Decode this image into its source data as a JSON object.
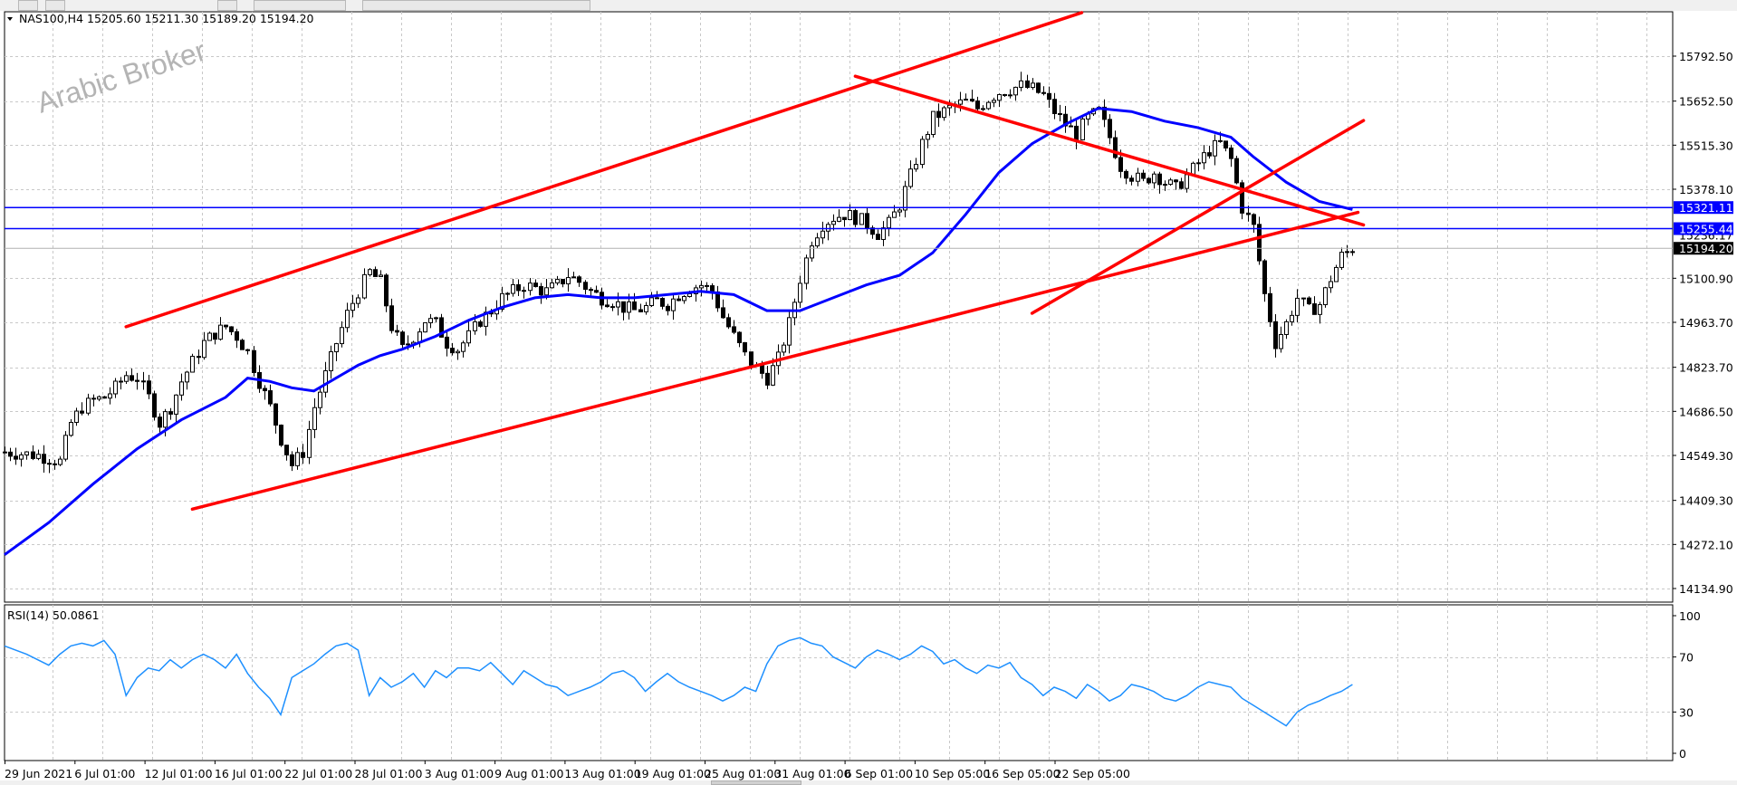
{
  "window": {
    "symbol_info": "NAS100,H4",
    "ohlc": "15205.60 15211.30 15189.20 15194.20",
    "watermark": "Arabic Broker",
    "rsi_label": "RSI(14) 50.0861"
  },
  "colors": {
    "background": "#ffffff",
    "grid": "#c8c8c8",
    "candles": "#000000",
    "ma": "#0000ff",
    "trendlines": "#ff0000",
    "hlines": "#0000ff",
    "rsi": "#1e90ff",
    "current_price_tag": "#000000",
    "level_tag": "#0000ff"
  },
  "icons": [
    "dropdown-arrow-icon"
  ],
  "chart_data": [
    {
      "type": "candlestick",
      "symbol": "NAS100",
      "timeframe": "H4",
      "ylim": [
        14072,
        15915
      ],
      "price_ticks": [
        "15792.50",
        "15652.50",
        "15515.30",
        "15378.10",
        "15100.90",
        "14963.70",
        "14823.70",
        "14686.50",
        "14549.30",
        "14409.30",
        "14272.10",
        "14134.90"
      ],
      "time_labels": [
        "29 Jun 2021",
        "6 Jul 01:00",
        "12 Jul 01:00",
        "16 Jul 01:00",
        "22 Jul 01:00",
        "28 Jul 01:00",
        "3 Aug 01:00",
        "9 Aug 01:00",
        "13 Aug 01:00",
        "19 Aug 01:00",
        "25 Aug 01:00",
        "31 Aug 01:00",
        "6 Sep 01:00",
        "10 Sep 05:00",
        "16 Sep 05:00",
        "22 Sep 05:00"
      ],
      "levels": [
        {
          "label": "15321.11",
          "value": 15321.11
        },
        {
          "label": "15255.44",
          "value": 15255.44
        },
        {
          "label": "15194.20",
          "value": 15194.2,
          "kind": "current"
        }
      ],
      "hidden_level_label": "15236.17",
      "close_path": [
        [
          0,
          14560
        ],
        [
          6,
          14550
        ],
        [
          10,
          14530
        ],
        [
          12,
          14650
        ],
        [
          14,
          14700
        ],
        [
          16,
          14720
        ],
        [
          18,
          14730
        ],
        [
          20,
          14760
        ],
        [
          22,
          14800
        ],
        [
          24,
          14790
        ],
        [
          26,
          14730
        ],
        [
          28,
          14650
        ],
        [
          30,
          14700
        ],
        [
          32,
          14780
        ],
        [
          34,
          14840
        ],
        [
          36,
          14900
        ],
        [
          38,
          14930
        ],
        [
          40,
          14950
        ],
        [
          42,
          14920
        ],
        [
          44,
          14870
        ],
        [
          46,
          14780
        ],
        [
          48,
          14700
        ],
        [
          50,
          14600
        ],
        [
          52,
          14520
        ],
        [
          54,
          14560
        ],
        [
          56,
          14700
        ],
        [
          58,
          14800
        ],
        [
          60,
          14900
        ],
        [
          62,
          14990
        ],
        [
          64,
          15060
        ],
        [
          66,
          15120
        ],
        [
          68,
          15090
        ],
        [
          70,
          14950
        ],
        [
          72,
          14880
        ],
        [
          74,
          14920
        ],
        [
          76,
          14970
        ],
        [
          78,
          14960
        ],
        [
          80,
          14900
        ],
        [
          82,
          14880
        ],
        [
          84,
          14920
        ],
        [
          86,
          14970
        ],
        [
          88,
          15000
        ],
        [
          90,
          15040
        ],
        [
          92,
          15060
        ],
        [
          94,
          15080
        ],
        [
          96,
          15070
        ],
        [
          98,
          15060
        ],
        [
          100,
          15080
        ],
        [
          102,
          15110
        ],
        [
          104,
          15090
        ],
        [
          106,
          15060
        ],
        [
          108,
          15040
        ],
        [
          110,
          15030
        ],
        [
          112,
          15010
        ],
        [
          114,
          15000
        ],
        [
          116,
          15010
        ],
        [
          118,
          15030
        ],
        [
          120,
          15020
        ],
        [
          122,
          15050
        ],
        [
          124,
          15070
        ],
        [
          126,
          15080
        ],
        [
          128,
          15060
        ],
        [
          130,
          14980
        ],
        [
          132,
          14920
        ],
        [
          134,
          14860
        ],
        [
          136,
          14820
        ],
        [
          138,
          14790
        ],
        [
          140,
          14850
        ],
        [
          142,
          14960
        ],
        [
          144,
          15100
        ],
        [
          146,
          15220
        ],
        [
          148,
          15270
        ],
        [
          150,
          15290
        ],
        [
          152,
          15300
        ],
        [
          154,
          15290
        ],
        [
          156,
          15270
        ],
        [
          158,
          15240
        ],
        [
          160,
          15270
        ],
        [
          162,
          15330
        ],
        [
          164,
          15420
        ],
        [
          166,
          15520
        ],
        [
          168,
          15600
        ],
        [
          170,
          15620
        ],
        [
          172,
          15640
        ],
        [
          174,
          15650
        ],
        [
          176,
          15630
        ],
        [
          178,
          15660
        ],
        [
          180,
          15680
        ],
        [
          182,
          15690
        ],
        [
          184,
          15700
        ],
        [
          186,
          15690
        ],
        [
          188,
          15670
        ],
        [
          190,
          15620
        ],
        [
          192,
          15580
        ],
        [
          194,
          15550
        ],
        [
          196,
          15600
        ],
        [
          198,
          15620
        ],
        [
          200,
          15540
        ],
        [
          202,
          15450
        ],
        [
          204,
          15420
        ],
        [
          206,
          15400
        ],
        [
          208,
          15430
        ],
        [
          210,
          15400
        ],
        [
          212,
          15380
        ],
        [
          214,
          15420
        ],
        [
          216,
          15460
        ],
        [
          218,
          15500
        ],
        [
          220,
          15520
        ],
        [
          222,
          15470
        ],
        [
          224,
          15320
        ],
        [
          226,
          15260
        ],
        [
          228,
          15050
        ],
        [
          230,
          14900
        ],
        [
          232,
          14960
        ],
        [
          234,
          15040
        ],
        [
          236,
          15000
        ],
        [
          238,
          15020
        ],
        [
          240,
          15100
        ],
        [
          242,
          15170
        ],
        [
          244,
          15194
        ]
      ],
      "ma_path": [
        [
          0,
          14240
        ],
        [
          8,
          14340
        ],
        [
          16,
          14460
        ],
        [
          24,
          14570
        ],
        [
          32,
          14660
        ],
        [
          40,
          14730
        ],
        [
          44,
          14790
        ],
        [
          48,
          14780
        ],
        [
          52,
          14760
        ],
        [
          56,
          14750
        ],
        [
          60,
          14790
        ],
        [
          64,
          14830
        ],
        [
          68,
          14860
        ],
        [
          72,
          14880
        ],
        [
          78,
          14920
        ],
        [
          84,
          14970
        ],
        [
          90,
          15010
        ],
        [
          96,
          15040
        ],
        [
          102,
          15050
        ],
        [
          108,
          15040
        ],
        [
          114,
          15040
        ],
        [
          120,
          15050
        ],
        [
          126,
          15060
        ],
        [
          132,
          15050
        ],
        [
          138,
          15000
        ],
        [
          144,
          15000
        ],
        [
          150,
          15040
        ],
        [
          156,
          15080
        ],
        [
          162,
          15110
        ],
        [
          168,
          15180
        ],
        [
          174,
          15300
        ],
        [
          180,
          15430
        ],
        [
          186,
          15520
        ],
        [
          192,
          15580
        ],
        [
          198,
          15630
        ],
        [
          204,
          15620
        ],
        [
          210,
          15590
        ],
        [
          216,
          15570
        ],
        [
          222,
          15540
        ],
        [
          226,
          15480
        ],
        [
          232,
          15400
        ],
        [
          238,
          15340
        ],
        [
          244,
          15315
        ]
      ],
      "trendlines": [
        {
          "name": "channel-upper",
          "x": [
            22,
            195
          ],
          "y": [
            14950,
            15928
          ]
        },
        {
          "name": "channel-lower",
          "x": [
            34,
            245
          ],
          "y": [
            14382,
            15306
          ]
        },
        {
          "name": "resistance-down",
          "x": [
            154,
            246
          ],
          "y": [
            15730,
            15267
          ]
        },
        {
          "name": "support-up",
          "x": [
            186,
            246
          ],
          "y": [
            14992,
            15592
          ]
        }
      ]
    },
    {
      "type": "line",
      "indicator": "RSI",
      "period": 14,
      "value": 50.0861,
      "ylim": [
        0,
        100
      ],
      "ticks": [
        "100",
        "70",
        "30",
        "0"
      ],
      "points": [
        [
          0,
          78
        ],
        [
          4,
          72
        ],
        [
          8,
          64
        ],
        [
          10,
          72
        ],
        [
          12,
          78
        ],
        [
          14,
          80
        ],
        [
          16,
          78
        ],
        [
          18,
          82
        ],
        [
          20,
          72
        ],
        [
          22,
          42
        ],
        [
          24,
          55
        ],
        [
          26,
          62
        ],
        [
          28,
          60
        ],
        [
          30,
          68
        ],
        [
          32,
          62
        ],
        [
          34,
          68
        ],
        [
          36,
          72
        ],
        [
          38,
          68
        ],
        [
          40,
          62
        ],
        [
          42,
          72
        ],
        [
          44,
          58
        ],
        [
          46,
          48
        ],
        [
          48,
          40
        ],
        [
          50,
          28
        ],
        [
          52,
          55
        ],
        [
          54,
          60
        ],
        [
          56,
          65
        ],
        [
          58,
          72
        ],
        [
          60,
          78
        ],
        [
          62,
          80
        ],
        [
          64,
          75
        ],
        [
          66,
          42
        ],
        [
          68,
          55
        ],
        [
          70,
          48
        ],
        [
          72,
          52
        ],
        [
          74,
          58
        ],
        [
          76,
          48
        ],
        [
          78,
          60
        ],
        [
          80,
          55
        ],
        [
          82,
          62
        ],
        [
          84,
          62
        ],
        [
          86,
          60
        ],
        [
          88,
          66
        ],
        [
          90,
          58
        ],
        [
          92,
          50
        ],
        [
          94,
          60
        ],
        [
          96,
          55
        ],
        [
          98,
          50
        ],
        [
          100,
          48
        ],
        [
          102,
          42
        ],
        [
          104,
          45
        ],
        [
          106,
          48
        ],
        [
          108,
          52
        ],
        [
          110,
          58
        ],
        [
          112,
          60
        ],
        [
          114,
          55
        ],
        [
          116,
          45
        ],
        [
          118,
          52
        ],
        [
          120,
          58
        ],
        [
          122,
          52
        ],
        [
          124,
          48
        ],
        [
          126,
          45
        ],
        [
          128,
          42
        ],
        [
          130,
          38
        ],
        [
          132,
          42
        ],
        [
          134,
          48
        ],
        [
          136,
          45
        ],
        [
          138,
          65
        ],
        [
          140,
          78
        ],
        [
          142,
          82
        ],
        [
          144,
          84
        ],
        [
          146,
          80
        ],
        [
          148,
          78
        ],
        [
          150,
          70
        ],
        [
          152,
          66
        ],
        [
          154,
          62
        ],
        [
          156,
          70
        ],
        [
          158,
          75
        ],
        [
          160,
          72
        ],
        [
          162,
          68
        ],
        [
          164,
          72
        ],
        [
          166,
          78
        ],
        [
          168,
          74
        ],
        [
          170,
          65
        ],
        [
          172,
          68
        ],
        [
          174,
          62
        ],
        [
          176,
          58
        ],
        [
          178,
          64
        ],
        [
          180,
          62
        ],
        [
          182,
          66
        ],
        [
          184,
          55
        ],
        [
          186,
          50
        ],
        [
          188,
          42
        ],
        [
          190,
          48
        ],
        [
          192,
          45
        ],
        [
          194,
          40
        ],
        [
          196,
          50
        ],
        [
          198,
          45
        ],
        [
          200,
          38
        ],
        [
          202,
          42
        ],
        [
          204,
          50
        ],
        [
          206,
          48
        ],
        [
          208,
          45
        ],
        [
          210,
          40
        ],
        [
          212,
          38
        ],
        [
          214,
          42
        ],
        [
          216,
          48
        ],
        [
          218,
          52
        ],
        [
          220,
          50
        ],
        [
          222,
          48
        ],
        [
          224,
          40
        ],
        [
          226,
          35
        ],
        [
          228,
          30
        ],
        [
          230,
          25
        ],
        [
          232,
          20
        ],
        [
          234,
          30
        ],
        [
          236,
          35
        ],
        [
          238,
          38
        ],
        [
          240,
          42
        ],
        [
          242,
          45
        ],
        [
          244,
          50
        ]
      ]
    }
  ]
}
